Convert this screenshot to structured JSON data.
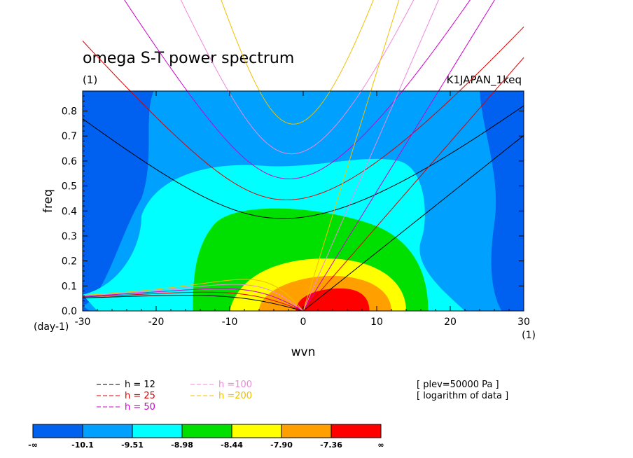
{
  "chart_data": {
    "type": "heatmap",
    "title": "omega S-T power spectrum",
    "subtitle": "(1)",
    "dataset_label": "K1JAPAN_1keq",
    "xlabel": "wvn",
    "ylabel": "freq",
    "x_unit": "(1)",
    "y_unit": "(day-1)",
    "xlim": [
      -30,
      30
    ],
    "ylim": [
      0,
      0.88
    ],
    "x_ticks": [
      -30,
      -20,
      -10,
      0,
      10,
      20,
      30
    ],
    "x_tick_labels": [
      "-30",
      "-20",
      "-10",
      "0",
      "10",
      "20",
      "30"
    ],
    "y_ticks": [
      0.0,
      0.1,
      0.2,
      0.3,
      0.4,
      0.5,
      0.6,
      0.7,
      0.8
    ],
    "y_tick_labels": [
      "0.0",
      "0.1",
      "0.2",
      "0.3",
      "0.4",
      "0.5",
      "0.6",
      "0.7",
      "0.8"
    ],
    "annotations": [
      "[ plev=50000 Pa ]",
      "[ logarithm of data ]"
    ],
    "dispersion_curves": [
      {
        "label": "h = 12",
        "h": 12,
        "color": "#000000"
      },
      {
        "label": "h = 25",
        "h": 25,
        "color": "#dd0000"
      },
      {
        "label": "h = 50",
        "h": 50,
        "color": "#cc00cc"
      },
      {
        "label": "h =100",
        "h": 100,
        "color": "#ee88dd"
      },
      {
        "label": "h =200",
        "h": 200,
        "color": "#f0c000"
      }
    ],
    "colorbar": {
      "colors": [
        "#0060f0",
        "#00a0ff",
        "#00ffff",
        "#00e000",
        "#ffff00",
        "#ffa000",
        "#ff0000"
      ],
      "labels": [
        "-∞",
        "-10.1",
        "-9.51",
        "-8.98",
        "-8.44",
        "-7.90",
        "-7.36",
        "∞"
      ]
    },
    "contour_levels": [
      -10.1,
      -9.51,
      -8.98,
      -8.44,
      -7.9,
      -7.36
    ],
    "field_description_points": {
      "peak_region": {
        "x": [
          0,
          9
        ],
        "y": [
          0,
          0.08
        ],
        "level": "> -7.36"
      },
      "green_region_top_freq": 0.42,
      "cyan_region_top_freq": 0.62,
      "outer_blue_region_x": [
        -30,
        -23,
        24,
        30
      ]
    }
  }
}
